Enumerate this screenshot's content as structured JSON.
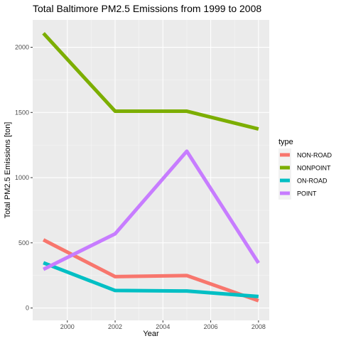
{
  "chart_data": {
    "type": "line",
    "title": "Total Baltimore PM2.5 Emissions from 1999 to 2008",
    "xlabel": "Year",
    "ylabel": "Total PM2.5 Emissions [ton]",
    "x": [
      1999,
      2002,
      2005,
      2008
    ],
    "xlim": [
      1998.55,
      2008.45
    ],
    "ylim": [
      -95,
      2210
    ],
    "x_ticks": [
      2000,
      2002,
      2004,
      2006,
      2008
    ],
    "y_ticks": [
      0,
      500,
      1000,
      1500,
      2000
    ],
    "grid": true,
    "legend": {
      "title": "type",
      "position": "right"
    },
    "series": [
      {
        "name": "NON-ROAD",
        "color": "#F8766D",
        "values": [
          522.9,
          240.8,
          248.9,
          55.8
        ]
      },
      {
        "name": "NONPOINT",
        "color": "#7CAE00",
        "values": [
          2107.6,
          1509.5,
          1509.5,
          1373.2
        ]
      },
      {
        "name": "ON-ROAD",
        "color": "#00BFC4",
        "values": [
          346.8,
          134.3,
          130.4,
          88.3
        ]
      },
      {
        "name": "POINT",
        "color": "#C77CFF",
        "values": [
          296.8,
          569.3,
          1202.5,
          344.98
        ]
      }
    ]
  }
}
